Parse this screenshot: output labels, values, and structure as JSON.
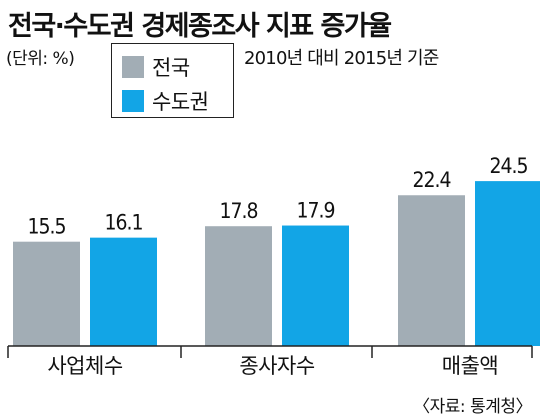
{
  "title": "전국·수도권 경제종조사 지표 증가율",
  "unit_label": "(단위: %)",
  "basis_note": "2010년 대비 2015년 기준",
  "source": "〈자료: 통계청〉",
  "colors": {
    "nation": "#a2adb5",
    "capital": "#12a5e6",
    "axis": "#222222"
  },
  "chart_data": {
    "type": "bar",
    "title": "전국·수도권 경제종조사 지표 증가율",
    "categories": [
      "사업체수",
      "종사자수",
      "매출액"
    ],
    "series": [
      {
        "name": "전국",
        "values": [
          15.5,
          17.8,
          22.4
        ]
      },
      {
        "name": "수도권",
        "values": [
          16.1,
          17.9,
          24.5
        ]
      }
    ],
    "value_labels": [
      [
        "15.5",
        "17.8",
        "22.4"
      ],
      [
        "16.1",
        "17.9",
        "24.5"
      ]
    ],
    "ylim": [
      0,
      26
    ],
    "xlabel": "",
    "ylabel": "",
    "grid": false,
    "legend": "top-left"
  }
}
